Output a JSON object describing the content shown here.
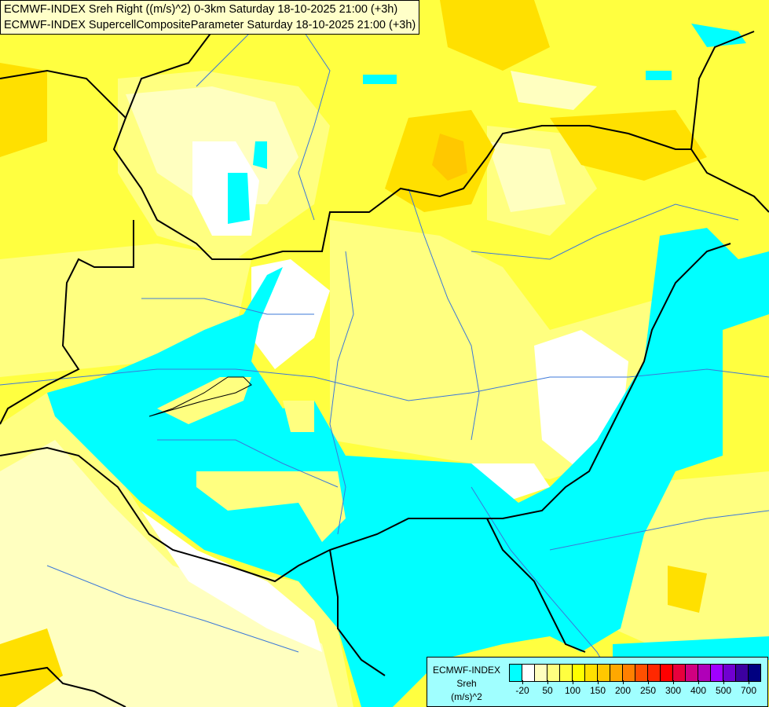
{
  "titles": [
    "ECMWF-INDEX Sreh Right ((m/s)^2) 0-3km Saturday 18-10-2025 21:00 (+3h)",
    "ECMWF-INDEX SupercellCompositeParameter Saturday 18-10-2025 21:00 (+3h)"
  ],
  "legend": {
    "source": "ECMWF-INDEX",
    "parameter": "Sreh",
    "unit": "(m/s)^2",
    "colors": [
      "#00ffff",
      "#ffffff",
      "#ffffc0",
      "#ffff80",
      "#ffff40",
      "#ffff00",
      "#ffe000",
      "#ffc800",
      "#ffa800",
      "#ff8000",
      "#ff5000",
      "#ff2800",
      "#ff0000",
      "#e8003c",
      "#d00080",
      "#b000b8",
      "#a000ff",
      "#7000d0",
      "#3c00a0",
      "#000080"
    ],
    "labels": [
      "-20",
      "50",
      "100",
      "150",
      "200",
      "250",
      "300",
      "400",
      "500",
      "700"
    ]
  },
  "map_colors": {
    "border": "#000000",
    "river": "#3c78d8",
    "water": "#00ffff"
  }
}
